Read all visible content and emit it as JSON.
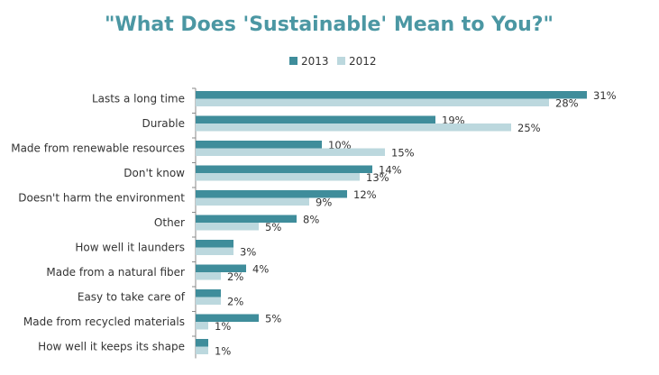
{
  "colors": {
    "title": "#4b97a3",
    "series_2013": "#3f8d9b",
    "series_2012": "#bcd8de",
    "axis": "#8a8a8a"
  },
  "chart_data": {
    "type": "bar",
    "orientation": "horizontal",
    "title": "\"What Does 'Sustainable' Mean to You?\"",
    "legend_position": "top",
    "grid": false,
    "xlim": [
      0,
      32
    ],
    "categories": [
      "Lasts a long time",
      "Durable",
      "Made from renewable resources",
      "Don't know",
      "Doesn't harm the environment",
      "Other",
      "How well it launders",
      "Made from a natural fiber",
      "Easy to take care of",
      "Made from recycled materials",
      "How well it keeps its shape"
    ],
    "series": [
      {
        "name": "2013",
        "values": [
          31,
          19,
          10,
          14,
          12,
          8,
          3,
          4,
          2,
          5,
          1
        ],
        "labels": [
          "31%",
          "19%",
          "10%",
          "14%",
          "12%",
          "8%",
          "",
          "4%",
          "",
          "5%",
          ""
        ]
      },
      {
        "name": "2012",
        "values": [
          28,
          25,
          15,
          13,
          9,
          5,
          3,
          2,
          2,
          1,
          1
        ],
        "labels": [
          "28%",
          "25%",
          "15%",
          "13%",
          "9%",
          "5%",
          "3%",
          "2%",
          "2%",
          "1%",
          "1%"
        ]
      }
    ]
  }
}
